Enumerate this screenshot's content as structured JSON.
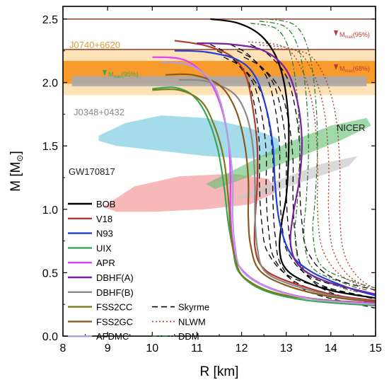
{
  "chart_data": {
    "type": "line",
    "title": "",
    "xlabel": "R [km]",
    "ylabel_main": "M [M",
    "ylabel_sub": "⊙",
    "ylabel_end": "]",
    "xlim": [
      8,
      15
    ],
    "ylim": [
      0,
      2.6
    ],
    "xticks": [
      8,
      9,
      10,
      11,
      12,
      13,
      14,
      15
    ],
    "yticks": [
      0.0,
      0.5,
      1.0,
      1.5,
      2.0,
      2.5
    ],
    "ytick_labels": [
      "0.0",
      "0.5",
      "1.0",
      "1.5",
      "2.0",
      "2.5"
    ],
    "grid": false,
    "legend_position": "bottom-left",
    "constraints": {
      "j0740": {
        "label": "J0740+6620",
        "mass": 2.08,
        "band68": [
          1.99,
          2.17
        ],
        "band95": [
          1.9,
          2.26
        ],
        "color": "#f7931e"
      },
      "j0348": {
        "label": "J0348+0432",
        "mass": 2.01,
        "band": [
          1.97,
          2.05
        ],
        "color": "#999999"
      },
      "mmax95": {
        "label_main": "M",
        "label_sub": "max",
        "label_tag": "(95%)",
        "mass": 2.5,
        "color": "#c0392b"
      },
      "mmax68": {
        "label_main": "M",
        "label_sub": "max",
        "label_tag": "(68%)",
        "mass": 2.26,
        "color": "#c0392b"
      },
      "mmax_left": {
        "label_main": "M",
        "label_sub": "max",
        "label_tag": "(95%)",
        "mass": 2.26,
        "color": "#3aa655"
      },
      "gw170817": {
        "label": "GW170817"
      },
      "nicer": {
        "label": "NICER"
      }
    },
    "series": [
      {
        "name": "BOB",
        "color": "#000000",
        "dash": "solid",
        "points": [
          [
            11.3,
            2.5
          ],
          [
            11.9,
            2.47
          ],
          [
            12.4,
            2.38
          ],
          [
            12.75,
            2.22
          ],
          [
            12.95,
            2.0
          ],
          [
            13.05,
            1.7
          ],
          [
            13.05,
            1.4
          ],
          [
            13.0,
            1.1
          ],
          [
            12.9,
            0.9
          ],
          [
            12.85,
            0.7
          ],
          [
            12.95,
            0.55
          ],
          [
            13.3,
            0.45
          ],
          [
            14.0,
            0.36
          ],
          [
            15.0,
            0.3
          ]
        ]
      },
      {
        "name": "V18",
        "color": "#b03a2e",
        "dash": "solid",
        "points": [
          [
            10.5,
            2.33
          ],
          [
            11.2,
            2.29
          ],
          [
            11.8,
            2.2
          ],
          [
            12.1,
            2.05
          ],
          [
            12.25,
            1.8
          ],
          [
            12.35,
            1.5
          ],
          [
            12.35,
            1.2
          ],
          [
            12.3,
            0.9
          ],
          [
            12.3,
            0.7
          ],
          [
            12.45,
            0.55
          ],
          [
            12.9,
            0.45
          ],
          [
            14.0,
            0.33
          ],
          [
            15.0,
            0.28
          ]
        ]
      },
      {
        "name": "N93",
        "color": "#1f3fd6",
        "dash": "solid",
        "points": [
          [
            10.5,
            2.25
          ],
          [
            11.2,
            2.24
          ],
          [
            11.9,
            2.18
          ],
          [
            12.3,
            2.05
          ],
          [
            12.55,
            1.8
          ],
          [
            12.7,
            1.5
          ],
          [
            12.75,
            1.2
          ],
          [
            12.85,
            0.9
          ],
          [
            13.1,
            0.65
          ],
          [
            13.6,
            0.5
          ],
          [
            14.4,
            0.38
          ],
          [
            15.0,
            0.32
          ]
        ]
      },
      {
        "name": "UIX",
        "color": "#3aa655",
        "dash": "solid",
        "points": [
          [
            10.0,
            1.95
          ],
          [
            10.5,
            1.96
          ],
          [
            10.9,
            1.9
          ],
          [
            11.2,
            1.75
          ],
          [
            11.45,
            1.5
          ],
          [
            11.6,
            1.2
          ],
          [
            11.7,
            0.9
          ],
          [
            11.8,
            0.7
          ],
          [
            11.95,
            0.5
          ],
          [
            12.5,
            0.36
          ],
          [
            13.5,
            0.28
          ],
          [
            15.0,
            0.24
          ]
        ]
      },
      {
        "name": "APR",
        "color": "#e040fb",
        "dash": "solid",
        "points": [
          [
            10.0,
            2.2
          ],
          [
            10.7,
            2.18
          ],
          [
            11.2,
            2.05
          ],
          [
            11.5,
            1.85
          ],
          [
            11.7,
            1.55
          ],
          [
            11.75,
            1.25
          ],
          [
            11.75,
            1.0
          ],
          [
            11.8,
            0.75
          ],
          [
            11.95,
            0.55
          ],
          [
            12.5,
            0.4
          ],
          [
            13.5,
            0.3
          ],
          [
            15.0,
            0.26
          ]
        ]
      },
      {
        "name": "DBHF(A)",
        "color": "#7b1fa2",
        "dash": "solid",
        "points": [
          [
            11.0,
            2.31
          ],
          [
            11.8,
            2.3
          ],
          [
            12.5,
            2.25
          ],
          [
            13.0,
            2.1
          ],
          [
            13.25,
            1.85
          ],
          [
            13.35,
            1.55
          ],
          [
            13.3,
            1.25
          ],
          [
            13.15,
            0.95
          ],
          [
            13.1,
            0.72
          ],
          [
            13.3,
            0.55
          ],
          [
            13.9,
            0.43
          ],
          [
            15.0,
            0.33
          ]
        ]
      },
      {
        "name": "DBHF(B)",
        "color": "#8a8a8a",
        "dash": "solid",
        "points": [
          [
            10.6,
            2.02
          ],
          [
            11.2,
            2.01
          ],
          [
            11.8,
            1.92
          ],
          [
            12.1,
            1.75
          ],
          [
            12.25,
            1.5
          ],
          [
            12.3,
            1.2
          ],
          [
            12.3,
            0.95
          ],
          [
            12.35,
            0.7
          ],
          [
            12.5,
            0.52
          ],
          [
            13.0,
            0.42
          ],
          [
            14.0,
            0.32
          ],
          [
            15.0,
            0.27
          ]
        ]
      },
      {
        "name": "FSS2CC",
        "color": "#7a7a1a",
        "dash": "solid",
        "points": [
          [
            10.0,
            1.94
          ],
          [
            10.6,
            1.94
          ],
          [
            11.1,
            1.85
          ],
          [
            11.4,
            1.65
          ],
          [
            11.6,
            1.4
          ],
          [
            11.7,
            1.1
          ],
          [
            11.75,
            0.85
          ],
          [
            11.85,
            0.62
          ],
          [
            12.1,
            0.45
          ],
          [
            13.0,
            0.32
          ],
          [
            15.0,
            0.25
          ]
        ]
      },
      {
        "name": "FSS2GC",
        "color": "#8b5a1a",
        "dash": "solid",
        "points": [
          [
            10.3,
            2.06
          ],
          [
            10.9,
            2.06
          ],
          [
            11.5,
            1.98
          ],
          [
            11.85,
            1.8
          ],
          [
            12.05,
            1.55
          ],
          [
            12.15,
            1.25
          ],
          [
            12.15,
            0.95
          ],
          [
            12.2,
            0.72
          ],
          [
            12.4,
            0.52
          ],
          [
            13.0,
            0.4
          ],
          [
            14.0,
            0.31
          ],
          [
            15.0,
            0.27
          ]
        ]
      },
      {
        "name": "AFDMC",
        "color": "#b39ddb",
        "dash": "solid",
        "points": [
          [
            10.2,
            2.16
          ],
          [
            10.8,
            2.14
          ],
          [
            11.3,
            2.02
          ],
          [
            11.55,
            1.82
          ],
          [
            11.7,
            1.55
          ],
          [
            11.8,
            1.25
          ],
          [
            11.8,
            0.95
          ],
          [
            11.85,
            0.72
          ],
          [
            12.0,
            0.52
          ],
          [
            12.6,
            0.38
          ],
          [
            13.6,
            0.29
          ],
          [
            15.0,
            0.25
          ]
        ]
      }
    ],
    "families": [
      {
        "name": "Skyrme",
        "color": "#000000",
        "dash": "8,5"
      },
      {
        "name": "NLWM",
        "color": "#b03a2e",
        "dash": "2,3"
      },
      {
        "name": "DDM",
        "color": "#2e7d32",
        "dash": "7,3,2,3"
      }
    ]
  }
}
